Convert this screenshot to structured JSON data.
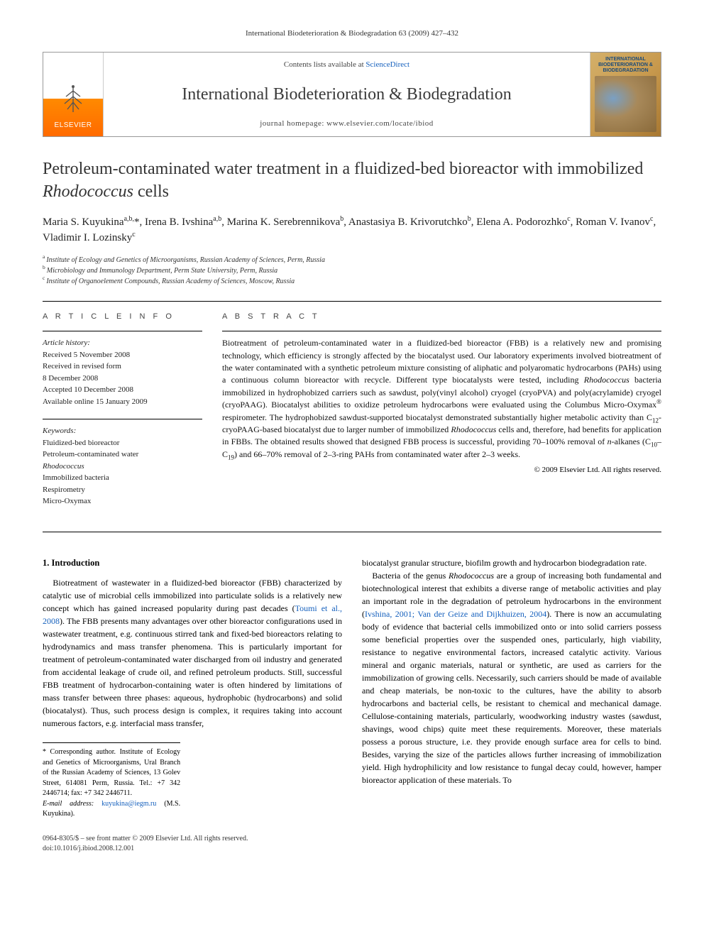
{
  "running_head": "International Biodeterioration & Biodegradation 63 (2009) 427–432",
  "masthead": {
    "publisher_label": "ELSEVIER",
    "contents_prefix": "Contents lists available at ",
    "contents_link": "ScienceDirect",
    "journal_name": "International Biodeterioration & Biodegradation",
    "homepage_prefix": "journal homepage: ",
    "homepage_url": "www.elsevier.com/locate/ibiod",
    "cover_title": "INTERNATIONAL BIODETERIORATION & BIODEGRADATION"
  },
  "article": {
    "title_pre": "Petroleum-contaminated water treatment in a fluidized-bed bioreactor with immobilized ",
    "title_ital": "Rhodococcus",
    "title_post": " cells",
    "authors_html": "Maria S. Kuyukina<sup>a,b,</sup>*, Irena B. Ivshina<sup>a,b</sup>, Marina K. Serebrennikova<sup>b</sup>, Anastasiya B. Krivorutchko<sup>b</sup>, Elena A. Podorozhko<sup>c</sup>, Roman V. Ivanov<sup>c</sup>, Vladimir I. Lozinsky<sup>c</sup>",
    "affiliations": [
      {
        "mark": "a",
        "text": "Institute of Ecology and Genetics of Microorganisms, Russian Academy of Sciences, Perm, Russia"
      },
      {
        "mark": "b",
        "text": "Microbiology and Immunology Department, Perm State University, Perm, Russia"
      },
      {
        "mark": "c",
        "text": "Institute of Organoelement Compounds, Russian Academy of Sciences, Moscow, Russia"
      }
    ]
  },
  "info": {
    "label": "A R T I C L E   I N F O",
    "history_head": "Article history:",
    "history": [
      "Received 5 November 2008",
      "Received in revised form",
      "8 December 2008",
      "Accepted 10 December 2008",
      "Available online 15 January 2009"
    ],
    "keywords_head": "Keywords:",
    "keywords": [
      "Fluidized-bed bioreactor",
      "Petroleum-contaminated water",
      "Rhodococcus",
      "Immobilized bacteria",
      "Respirometry",
      "Micro-Oxymax"
    ]
  },
  "abstract": {
    "label": "A B S T R A C T",
    "text_html": "Biotreatment of petroleum-contaminated water in a fluidized-bed bioreactor (FBB) is a relatively new and promising technology, which efficiency is strongly affected by the biocatalyst used. Our laboratory experiments involved biotreatment of the water contaminated with a synthetic petroleum mixture consisting of aliphatic and polyaromatic hydrocarbons (PAHs) using a continuous column bioreactor with recycle. Different type biocatalysts were tested, including <span class=\"ital\">Rhodococcus</span> bacteria immobilized in hydrophobized carriers such as sawdust, poly(vinyl alcohol) cryogel (cryoPVA) and poly(acrylamide) cryogel (cryoPAAG). Biocatalyst abilities to oxidize petroleum hydrocarbons were evaluated using the Columbus Micro-Oxymax<sup>®</sup> respirometer. The hydrophobized sawdust-supported biocatalyst demonstrated substantially higher metabolic activity than C<sub>12</sub>-cryoPAAG-based biocatalyst due to larger number of immobilized <span class=\"ital\">Rhodococcus</span> cells and, therefore, had benefits for application in FBBs. The obtained results showed that designed FBB process is successful, providing 70–100% removal of <span class=\"ital\">n</span>-alkanes (C<sub>10</sub>–C<sub>19</sub>) and 66–70% removal of 2–3-ring PAHs from contaminated water after 2–3 weeks.",
    "copyright": "© 2009 Elsevier Ltd. All rights reserved."
  },
  "body": {
    "heading": "1. Introduction",
    "p1_html": "Biotreatment of wastewater in a fluidized-bed bioreactor (FBB) characterized by catalytic use of microbial cells immobilized into particulate solids is a relatively new concept which has gained increased popularity during past decades (<a class=\"ref\" href=\"#\">Toumi et al., 2008</a>). The FBB presents many advantages over other bioreactor configurations used in wastewater treatment, e.g. continuous stirred tank and fixed-bed bioreactors relating to hydrodynamics and mass transfer phenomena. This is particularly important for treatment of petroleum-contaminated water discharged from oil industry and generated from accidental leakage of crude oil, and refined petroleum products. Still, successful FBB treatment of hydrocarbon-containing water is often hindered by limitations of mass transfer between three phases: aqueous, hydrophobic (hydrocarbons) and solid (biocatalyst). Thus, such process design is complex, it requires taking into account numerous factors, e.g. interfacial mass transfer,",
    "p2_html": "biocatalyst granular structure, biofilm growth and hydrocarbon biodegradation rate.",
    "p3_html": "Bacteria of the genus <span class=\"ital\">Rhodococcus</span> are a group of increasing both fundamental and biotechnological interest that exhibits a diverse range of metabolic activities and play an important role in the degradation of petroleum hydrocarbons in the environment (<a class=\"ref\" href=\"#\">Ivshina, 2001; Van der Geize and Dijkhuizen, 2004</a>). There is now an accumulating body of evidence that bacterial cells immobilized onto or into solid carriers possess some beneficial properties over the suspended ones, particularly, high viability, resistance to negative environmental factors, increased catalytic activity. Various mineral and organic materials, natural or synthetic, are used as carriers for the immobilization of growing cells. Necessarily, such carriers should be made of available and cheap materials, be non-toxic to the cultures, have the ability to absorb hydrocarbons and bacterial cells, be resistant to chemical and mechanical damage. Cellulose-containing materials, particularly, woodworking industry wastes (sawdust, shavings, wood chips) quite meet these requirements. Moreover, these materials possess a porous structure, i.e. they provide enough surface area for cells to bind. Besides, varying the size of the particles allows further increasing of immobilization yield. High hydrophilicity and low resistance to fungal decay could, however, hamper bioreactor application of these materials. To"
  },
  "footnotes": {
    "corr_html": "* Corresponding author. Institute of Ecology and Genetics of Microorganisms, Ural Branch of the Russian Academy of Sciences, 13 Golev Street, 614081 Perm, Russia. Tel.: +7 342 2446714; fax: +7 342 2446711.",
    "email_label": "E-mail address:",
    "email": "kuyukina@iegm.ru",
    "email_name": "(M.S. Kuyukina)."
  },
  "footer": {
    "line1": "0964-8305/$ – see front matter © 2009 Elsevier Ltd. All rights reserved.",
    "line2": "doi:10.1016/j.ibiod.2008.12.001"
  },
  "colors": {
    "link": "#1560bd",
    "elsevier_orange": "#ff6a00",
    "text": "#000000"
  }
}
